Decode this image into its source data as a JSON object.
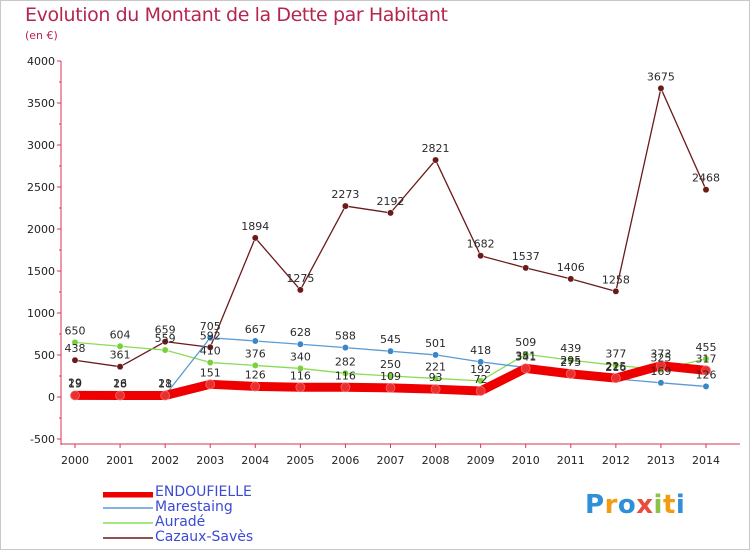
{
  "title": "Evolution du Montant de la Dette par Habitant",
  "subtitle": "(en €)",
  "logo_text": "Proxiti",
  "chart_data": {
    "type": "line",
    "x": [
      "2000",
      "2001",
      "2002",
      "2003",
      "2004",
      "2005",
      "2006",
      "2007",
      "2008",
      "2009",
      "2010",
      "2011",
      "2012",
      "2013",
      "2014"
    ],
    "ylim": [
      -500,
      4000
    ],
    "yticks": [
      -500,
      0,
      500,
      1000,
      1500,
      2000,
      2500,
      3000,
      3500,
      4000
    ],
    "grid": false,
    "legend_position": "bottom-left",
    "series": [
      {
        "name": "ENDOUFIELLE",
        "color": "#ee0000",
        "marker": "#e83030",
        "values": [
          19,
          18,
          18,
          151,
          126,
          116,
          116,
          109,
          93,
          72,
          341,
          275,
          225,
          373,
          317
        ],
        "labels": [
          "19",
          "18",
          "18",
          "151",
          "126",
          "116",
          "116",
          "109",
          "93",
          "72",
          "341",
          "275",
          "225",
          "373",
          "317"
        ]
      },
      {
        "name": "Marestaing",
        "color": "#5b9bd5",
        "marker": "#3a86c8",
        "values": [
          29,
          26,
          21,
          705,
          667,
          628,
          588,
          545,
          501,
          418,
          351,
          295,
          216,
          169,
          126
        ],
        "labels": [
          "29",
          "26",
          "21",
          "705",
          "667",
          "628",
          "588",
          "545",
          "501",
          "418",
          "351",
          "295",
          "216",
          "169",
          "126"
        ]
      },
      {
        "name": "Auradé",
        "color": "#88dd55",
        "marker": "#7ad03a",
        "values": [
          650,
          604,
          559,
          410,
          376,
          340,
          282,
          250,
          221,
          192,
          509,
          439,
          377,
          325,
          455
        ],
        "labels": [
          "650",
          "604",
          "559",
          "410",
          "376",
          "340",
          "282",
          "250",
          "221",
          "192",
          "509",
          "439",
          "377",
          "325",
          "455"
        ]
      },
      {
        "name": "Cazaux-Savès",
        "color": "#6b1a1a",
        "marker": "#6b1a1a",
        "values": [
          438,
          361,
          659,
          592,
          1894,
          1275,
          2273,
          2192,
          2821,
          1682,
          1537,
          1406,
          1258,
          3675,
          2468
        ],
        "labels": [
          "438",
          "361",
          "659",
          "592",
          "1894",
          "1275",
          "2273",
          "2192",
          "2821",
          "1682",
          "1537",
          "1406",
          "1258",
          "3675",
          "2468"
        ]
      }
    ]
  }
}
